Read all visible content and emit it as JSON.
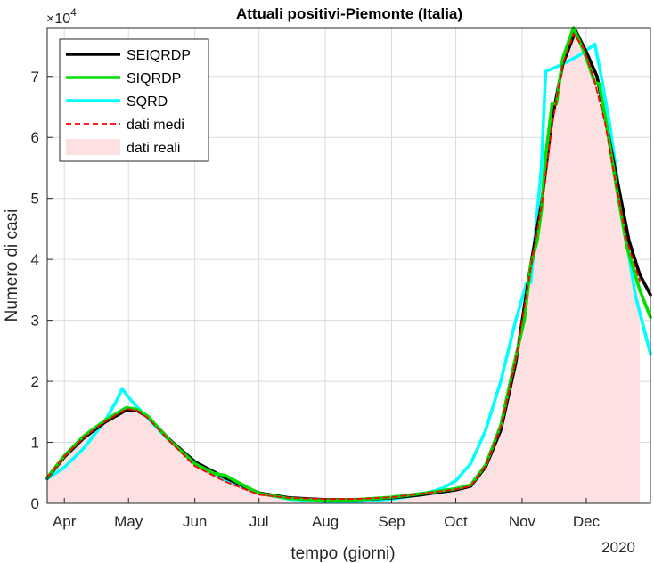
{
  "chart_data": {
    "type": "line",
    "title": "Attuali positivi-Piemonte (Italia)",
    "xlabel": "tempo (giorni)",
    "ylabel": "Numero di casi",
    "year_label": "2020",
    "y_exponent_label": "×10",
    "y_exponent_power": "4",
    "x_tick_labels": [
      "Apr",
      "May",
      "Jun",
      "Jul",
      "Aug",
      "Sep",
      "Oct",
      "Nov",
      "Dec"
    ],
    "y_tick_labels": [
      "0",
      "1",
      "2",
      "3",
      "4",
      "5",
      "6",
      "7"
    ],
    "xlim": [
      "2020-03-24",
      "2020-12-31"
    ],
    "ylim": [
      0,
      78000
    ],
    "x_ticks": [
      "2020-04-01",
      "2020-05-01",
      "2020-06-01",
      "2020-07-01",
      "2020-08-01",
      "2020-09-01",
      "2020-10-01",
      "2020-11-01",
      "2020-12-01"
    ],
    "y_ticks": [
      0,
      10000,
      20000,
      30000,
      40000,
      50000,
      60000,
      70000
    ],
    "grid": true,
    "legend_position": "top-left",
    "series": [
      {
        "name": "SEIQRDP",
        "style": "solid",
        "color": "#000000",
        "points": [
          [
            "2020-03-24",
            4100
          ],
          [
            "2020-04-01",
            7600
          ],
          [
            "2020-04-10",
            10700
          ],
          [
            "2020-04-20",
            13300
          ],
          [
            "2020-04-30",
            15300
          ],
          [
            "2020-05-05",
            15200
          ],
          [
            "2020-05-10",
            14200
          ],
          [
            "2020-05-20",
            10500
          ],
          [
            "2020-06-01",
            6800
          ],
          [
            "2020-06-15",
            4200
          ],
          [
            "2020-07-01",
            1700
          ],
          [
            "2020-07-15",
            900
          ],
          [
            "2020-08-01",
            600
          ],
          [
            "2020-08-15",
            600
          ],
          [
            "2020-09-01",
            900
          ],
          [
            "2020-09-15",
            1400
          ],
          [
            "2020-10-01",
            2200
          ],
          [
            "2020-10-08",
            2800
          ],
          [
            "2020-10-15",
            6000
          ],
          [
            "2020-10-22",
            12000
          ],
          [
            "2020-10-29",
            23000
          ],
          [
            "2020-11-05",
            39000
          ],
          [
            "2020-11-10",
            49000
          ],
          [
            "2020-11-15",
            63000
          ],
          [
            "2020-11-20",
            72000
          ],
          [
            "2020-11-26",
            77500
          ],
          [
            "2020-12-01",
            74000
          ],
          [
            "2020-12-06",
            70000
          ],
          [
            "2020-12-11",
            61000
          ],
          [
            "2020-12-16",
            52000
          ],
          [
            "2020-12-21",
            43000
          ],
          [
            "2020-12-26",
            37500
          ],
          [
            "2020-12-31",
            34200
          ]
        ]
      },
      {
        "name": "SIQRDP",
        "style": "solid",
        "color": "#00e000",
        "points": [
          [
            "2020-03-24",
            4200
          ],
          [
            "2020-04-01",
            7800
          ],
          [
            "2020-04-10",
            11000
          ],
          [
            "2020-04-20",
            13600
          ],
          [
            "2020-04-30",
            15700
          ],
          [
            "2020-05-05",
            15400
          ],
          [
            "2020-05-10",
            14300
          ],
          [
            "2020-05-20",
            10400
          ],
          [
            "2020-06-01",
            6500
          ],
          [
            "2020-06-10",
            4900
          ],
          [
            "2020-06-15",
            4600
          ],
          [
            "2020-07-01",
            1600
          ],
          [
            "2020-07-15",
            800
          ],
          [
            "2020-08-01",
            500
          ],
          [
            "2020-08-15",
            600
          ],
          [
            "2020-09-01",
            1000
          ],
          [
            "2020-09-15",
            1600
          ],
          [
            "2020-10-01",
            2400
          ],
          [
            "2020-10-08",
            3000
          ],
          [
            "2020-10-15",
            6300
          ],
          [
            "2020-10-22",
            12800
          ],
          [
            "2020-10-29",
            24000
          ],
          [
            "2020-11-02",
            30000
          ],
          [
            "2020-11-05",
            39000
          ],
          [
            "2020-11-08",
            43000
          ],
          [
            "2020-11-10",
            48000
          ],
          [
            "2020-11-12",
            57000
          ],
          [
            "2020-11-15",
            65500
          ],
          [
            "2020-11-17",
            65500
          ],
          [
            "2020-11-20",
            73000
          ],
          [
            "2020-11-25",
            78000
          ],
          [
            "2020-11-30",
            74000
          ],
          [
            "2020-12-05",
            69000
          ],
          [
            "2020-12-07",
            68800
          ],
          [
            "2020-12-10",
            63000
          ],
          [
            "2020-12-15",
            52000
          ],
          [
            "2020-12-20",
            42000
          ],
          [
            "2020-12-26",
            35000
          ],
          [
            "2020-12-31",
            30500
          ]
        ]
      },
      {
        "name": "SQRD",
        "style": "solid",
        "color": "#00ffff",
        "points": [
          [
            "2020-03-24",
            4000
          ],
          [
            "2020-04-01",
            5900
          ],
          [
            "2020-04-10",
            9000
          ],
          [
            "2020-04-20",
            13500
          ],
          [
            "2020-04-26",
            17200
          ],
          [
            "2020-04-28",
            18800
          ],
          [
            "2020-05-01",
            17400
          ],
          [
            "2020-05-05",
            15800
          ],
          [
            "2020-05-10",
            14000
          ],
          [
            "2020-05-20",
            10300
          ],
          [
            "2020-06-01",
            6900
          ],
          [
            "2020-06-15",
            3800
          ],
          [
            "2020-07-01",
            1700
          ],
          [
            "2020-07-15",
            700
          ],
          [
            "2020-08-01",
            300
          ],
          [
            "2020-08-15",
            300
          ],
          [
            "2020-09-01",
            700
          ],
          [
            "2020-09-15",
            1400
          ],
          [
            "2020-09-25",
            2500
          ],
          [
            "2020-10-01",
            3700
          ],
          [
            "2020-10-08",
            6500
          ],
          [
            "2020-10-15",
            12000
          ],
          [
            "2020-10-22",
            20000
          ],
          [
            "2020-10-29",
            30000
          ],
          [
            "2020-11-03",
            36000
          ],
          [
            "2020-11-05",
            36200
          ],
          [
            "2020-11-10",
            55000
          ],
          [
            "2020-11-12",
            70800
          ],
          [
            "2020-11-20",
            72000
          ],
          [
            "2020-11-28",
            73500
          ],
          [
            "2020-12-05",
            75300
          ],
          [
            "2020-12-08",
            70000
          ],
          [
            "2020-12-12",
            62000
          ],
          [
            "2020-12-18",
            47000
          ],
          [
            "2020-12-24",
            34000
          ],
          [
            "2020-12-31",
            24500
          ]
        ]
      },
      {
        "name": "dati medi",
        "style": "dashed",
        "color": "#ff0000",
        "points": [
          [
            "2020-03-24",
            4200
          ],
          [
            "2020-04-01",
            7700
          ],
          [
            "2020-04-10",
            10800
          ],
          [
            "2020-04-20",
            13400
          ],
          [
            "2020-04-30",
            15500
          ],
          [
            "2020-05-05",
            15200
          ],
          [
            "2020-05-10",
            14000
          ],
          [
            "2020-05-20",
            10300
          ],
          [
            "2020-06-01",
            6100
          ],
          [
            "2020-06-15",
            3600
          ],
          [
            "2020-07-01",
            1400
          ],
          [
            "2020-07-15",
            900
          ],
          [
            "2020-08-01",
            700
          ],
          [
            "2020-08-15",
            700
          ],
          [
            "2020-09-01",
            1000
          ],
          [
            "2020-09-15",
            1600
          ],
          [
            "2020-10-01",
            2300
          ],
          [
            "2020-10-08",
            2800
          ],
          [
            "2020-10-15",
            6200
          ],
          [
            "2020-10-22",
            12500
          ],
          [
            "2020-10-29",
            23500
          ],
          [
            "2020-11-05",
            38500
          ],
          [
            "2020-11-10",
            48500
          ],
          [
            "2020-11-15",
            62000
          ],
          [
            "2020-11-20",
            72000
          ],
          [
            "2020-11-25",
            77000
          ],
          [
            "2020-11-30",
            74500
          ],
          [
            "2020-12-05",
            69000
          ],
          [
            "2020-12-10",
            62000
          ],
          [
            "2020-12-15",
            52000
          ],
          [
            "2020-12-20",
            43000
          ],
          [
            "2020-12-26",
            36500
          ]
        ]
      },
      {
        "name": "dati reali",
        "style": "area",
        "color": "#fde0e2",
        "points": [
          [
            "2020-03-24",
            4200
          ],
          [
            "2020-04-01",
            7700
          ],
          [
            "2020-04-10",
            10800
          ],
          [
            "2020-04-20",
            13400
          ],
          [
            "2020-04-30",
            15500
          ],
          [
            "2020-05-05",
            15200
          ],
          [
            "2020-05-10",
            14000
          ],
          [
            "2020-05-20",
            10300
          ],
          [
            "2020-06-01",
            6100
          ],
          [
            "2020-06-15",
            3600
          ],
          [
            "2020-07-01",
            1400
          ],
          [
            "2020-07-15",
            900
          ],
          [
            "2020-08-01",
            700
          ],
          [
            "2020-08-15",
            700
          ],
          [
            "2020-09-01",
            1000
          ],
          [
            "2020-09-15",
            1600
          ],
          [
            "2020-10-01",
            2300
          ],
          [
            "2020-10-08",
            2800
          ],
          [
            "2020-10-15",
            6200
          ],
          [
            "2020-10-22",
            12500
          ],
          [
            "2020-10-29",
            23500
          ],
          [
            "2020-11-05",
            38500
          ],
          [
            "2020-11-10",
            48500
          ],
          [
            "2020-11-15",
            62000
          ],
          [
            "2020-11-20",
            72000
          ],
          [
            "2020-11-25",
            77000
          ],
          [
            "2020-11-30",
            74500
          ],
          [
            "2020-12-05",
            69000
          ],
          [
            "2020-12-10",
            62000
          ],
          [
            "2020-12-15",
            52000
          ],
          [
            "2020-12-20",
            43000
          ],
          [
            "2020-12-26",
            36500
          ]
        ]
      }
    ]
  }
}
